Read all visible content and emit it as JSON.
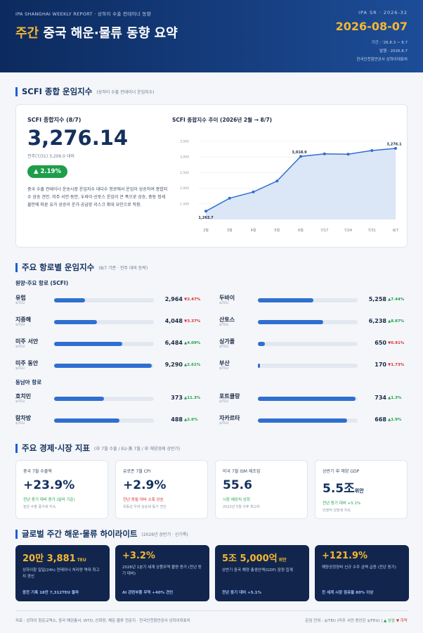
{
  "header": {
    "kicker": "IPA SHANGHAI WEEKLY REPORT · 상하이 수출 컨테이너 동향",
    "title_accent": "주간",
    "title": "중국 해운·물류 동향 요약",
    "code": "IPA SR · 2026-32",
    "date": "2026-08-07",
    "period": "기간 : '26.8.3 ~ 8.7",
    "issued": "발행 : 2026.8.7",
    "publisher": "한국인천항만공사 상하이대표처"
  },
  "scfi": {
    "title": "SCFI 종합 운임지수",
    "subtitle": "(상하이 수출 컨테이너 운임지수)",
    "label": "SCFI 종합지수 (8/7)",
    "value": "3,276.14",
    "compare": "전주(7/31) 3,206.0 대비",
    "change": "▲ 2.19%",
    "summary": "중국 수출 컨테이너 운송시장 운임지수 대다수 항로에서 운임이 상승하여 종합지수 상승 견인. 미주 서안·동안, 두바이·산토스 운임이 큰 폭으로 상승, 중동 정세 불안에 따른 유가 상승이 운가·공급망 리스크 확대 요인으로 작용.",
    "chart": {
      "type": "line",
      "title": "SCFI 종합지수 추이 (2026년 2월 → 8/7)",
      "categories": [
        "2월",
        "3월",
        "4월",
        "5월",
        "6월",
        "7/17",
        "7/24",
        "7/31",
        "8/7"
      ],
      "values": [
        1263.7,
        1680,
        1880,
        2230,
        3018.9,
        3100,
        3090,
        3206.0,
        3276.1
      ],
      "value_labels": [
        "1,263.7",
        null,
        null,
        null,
        "3,018.9",
        null,
        null,
        null,
        "3,276.1"
      ],
      "color": "#2f6fcf",
      "ylim": [
        1000,
        3500
      ],
      "yticks": [
        {
          "value": 1500,
          "label": "1,500"
        },
        {
          "value": 2000,
          "label": "2,000"
        },
        {
          "value": 2500,
          "label": "2,500"
        },
        {
          "value": 3000,
          "label": "3,000"
        },
        {
          "value": 3500,
          "label": "3,500"
        }
      ]
    }
  },
  "routes": {
    "title": "주요 항로별 운임지수",
    "subtitle": "(8/7 기준 · 전주 대비 등락)",
    "groups": [
      {
        "name": "원양·주요 항로 (SCFI)",
        "items": [
          {
            "name": "유럽",
            "unit": "$/TEU",
            "value": 2964,
            "value_label": "2,964",
            "change": -2.47,
            "change_label": "▼2.47%"
          },
          {
            "name": "두바이",
            "unit": "$/TEU",
            "value": 5258,
            "value_label": "5,258",
            "change": 7.44,
            "change_label": "▲7.44%"
          },
          {
            "name": "지중해",
            "unit": "$/TEU",
            "value": 4048,
            "value_label": "4,048",
            "change": -3.37,
            "change_label": "▼3.37%"
          },
          {
            "name": "산토스",
            "unit": "$/TEU",
            "value": 6238,
            "value_label": "6,238",
            "change": 8.87,
            "change_label": "▲8.87%"
          },
          {
            "name": "미주 서안",
            "unit": "$/FEU",
            "value": 6484,
            "value_label": "6,484",
            "change": 4.09,
            "change_label": "▲4.09%"
          },
          {
            "name": "싱가폴",
            "unit": "$/TEU",
            "value": 650,
            "value_label": "650",
            "change": -0.91,
            "change_label": "▼0.91%"
          },
          {
            "name": "미주 동안",
            "unit": "$/FEU",
            "value": 9290,
            "value_label": "9,290",
            "change": 2.61,
            "change_label": "▲2.61%"
          },
          {
            "name": "부산",
            "unit": "$/TEU",
            "value": 170,
            "value_label": "170",
            "change": -1.73,
            "change_label": "▼1.73%"
          }
        ]
      },
      {
        "name": "동남아 항로",
        "items": [
          {
            "name": "호치민",
            "unit": "$/TEU",
            "value": 373,
            "value_label": "373",
            "change": 11.3,
            "change_label": "▲11.3%"
          },
          {
            "name": "포트클랑",
            "unit": "$/TEU",
            "value": 734,
            "value_label": "734",
            "change": 1.3,
            "change_label": "▲1.3%"
          },
          {
            "name": "람차방",
            "unit": "$/TEU",
            "value": 488,
            "value_label": "488",
            "change": 2.6,
            "change_label": "▲2.6%"
          },
          {
            "name": "자카르타",
            "unit": "$/TEU",
            "value": 668,
            "value_label": "668",
            "change": 1.9,
            "change_label": "▲1.9%"
          }
        ]
      }
    ]
  },
  "indicators": {
    "title": "주요 경제·시장 지표",
    "subtitle": "(中 7월 수출 / EU·美 7월 / 中 해양경제 상반기)",
    "cards": [
      {
        "label": "중국 7월 수출액",
        "value": "+23.9%",
        "unit": "",
        "note": "전년 동기 대비 증가 (달러 기준)",
        "detail": "높은 수출 증가세 지속"
      },
      {
        "label": "유로존 7월 CPI",
        "value": "+2.9%",
        "unit": "",
        "note": "전년 동월 대비 소폭 상승",
        "detail": "유동성 우려 상승세 동기 견인"
      },
      {
        "label": "미국 7월 ISM 제조업",
        "value": "55.6",
        "unit": "",
        "note": "시장 예상치 상회",
        "detail": "2022년 5월 이후 최고치"
      },
      {
        "label": "상반기 中 해양 GDP",
        "value": "5.5조",
        "unit": "위안",
        "note": "전년 동기 대비 +5.1%",
        "detail": "안정적 성장세 지속"
      }
    ]
  },
  "highlights": {
    "title": "글로벌 주간 해운·물류 하이라이트",
    "subtitle": "(2026년 상반기 · 신기록)",
    "cards": [
      {
        "value": "20만 3,881",
        "unit": "TEU",
        "text": "상하이항 일일(24h) 컨테이너 처리량 역대 최고치 경신",
        "footer": "종전 기록 18만 7,312TEU 돌파"
      },
      {
        "value": "+3.2%",
        "unit": "",
        "text": "2026년 1분기 세계 상품무역 물량 증가 (전년 동기 대비)",
        "footer": "AI 관련부품 무역 +40% 견인"
      },
      {
        "value": "5조 5,000억",
        "unit": "위안",
        "text": "상반기 중국 해양 총생산액(GDP) 잠정 집계",
        "footer": "전년 동기 대비 +5.1%"
      },
      {
        "value": "+121.9%",
        "unit": "",
        "text": "해양공정장비 신규 수주 금액 급증 (전년 동기)",
        "footer": "전 세계 시장 점유율 80% 이상"
      }
    ]
  },
  "footer": {
    "source": "자료 : 상하이 항운교역소, 중국 해관총서, WTO, 신화망, 해운·물류 전문지 · 한국인천항만공사 상하이대표처",
    "unit_note": "운임 단위 : $/TEU (미주 서안·동안은 $/FEU)",
    "legend_up": "▲ 상승",
    "legend_down": "▼ 하락"
  }
}
